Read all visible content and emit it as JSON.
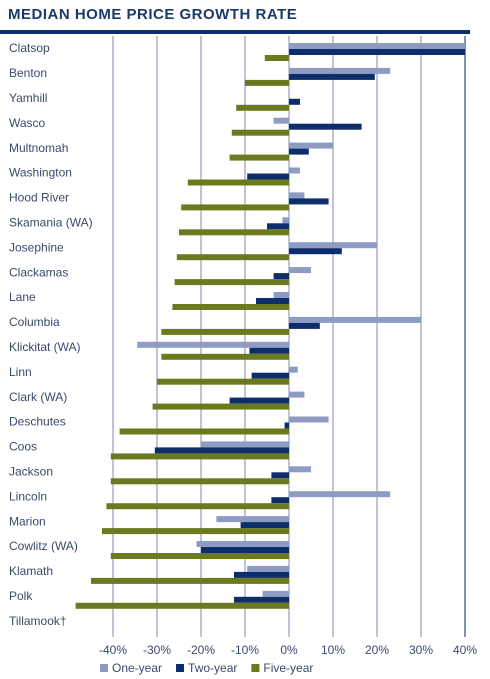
{
  "chart_data": {
    "type": "barh",
    "title": "MEDIAN HOME PRICE GROWTH RATE",
    "categories": [
      "Clatsop",
      "Benton",
      "Yamhill",
      "Wasco",
      "Multnomah",
      "Washington",
      "Hood River",
      "Skamania (WA)",
      "Josephine",
      "Clackamas",
      "Lane",
      "Columbia",
      "Klickitat (WA)",
      "Linn",
      "Clark (WA)",
      "Deschutes",
      "Coos",
      "Jackson",
      "Lincoln",
      "Marion",
      "Cowlitz (WA)",
      "Klamath",
      "Polk",
      "Tillamook†"
    ],
    "series": [
      {
        "name": "One-year",
        "color": "#8e9cc4",
        "values": [
          40,
          23,
          null,
          -3.5,
          10,
          2.5,
          3.5,
          -1.5,
          20,
          5,
          -3.5,
          30,
          -34.5,
          2,
          3.5,
          9,
          -20,
          5,
          23,
          -16.5,
          -21,
          -9.5,
          -6,
          null
        ]
      },
      {
        "name": "Two-year",
        "color": "#0d2d6b",
        "values": [
          40,
          19.5,
          2.5,
          16.5,
          4.5,
          -9.5,
          9,
          -5,
          12,
          -3.5,
          -7.5,
          7,
          -9,
          -8.5,
          -13.5,
          -1,
          -30.5,
          -4,
          -4,
          -11,
          -20,
          -12.5,
          -12.5,
          null
        ]
      },
      {
        "name": "Five-year",
        "color": "#6b7a1e",
        "values": [
          -5.5,
          -10,
          -12,
          -13,
          -13.5,
          -23,
          -24.5,
          -25,
          -25.5,
          -26,
          -26.5,
          -29,
          -29,
          -30,
          -31,
          -38.5,
          -40.5,
          -40.5,
          -41.5,
          -42.5,
          -40.5,
          -45,
          -48.5,
          null
        ]
      }
    ],
    "xlim": [
      -50,
      40
    ],
    "xticks": [
      {
        "value": -40,
        "label": "-40%"
      },
      {
        "value": -30,
        "label": "-30%"
      },
      {
        "value": -20,
        "label": "-20%"
      },
      {
        "value": -10,
        "label": "-10%"
      },
      {
        "value": 0,
        "label": "0%"
      },
      {
        "value": 10,
        "label": "10%"
      },
      {
        "value": 20,
        "label": "20%"
      },
      {
        "value": 30,
        "label": "30%"
      },
      {
        "value": 40,
        "label": "40%"
      }
    ],
    "grid": true
  }
}
